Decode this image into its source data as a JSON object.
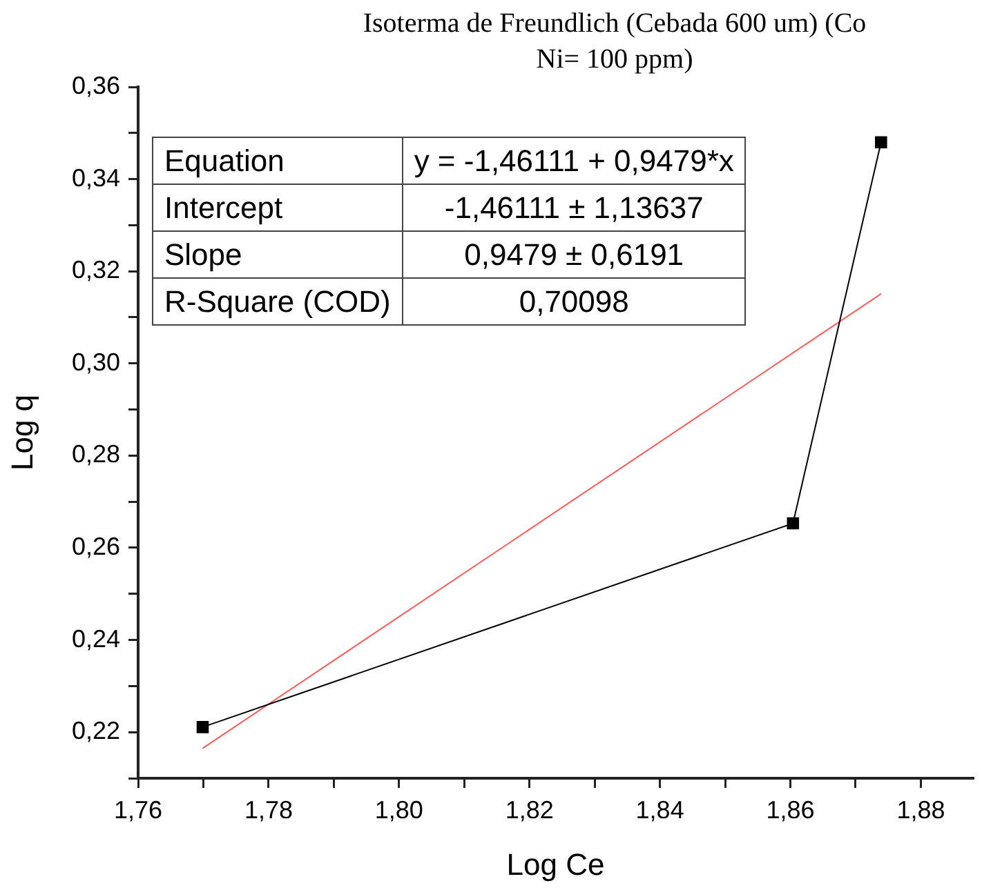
{
  "chart_data": {
    "type": "line",
    "title": "Isoterma de Freundlich (Cebada 600 um) (Co Ni= 100 ppm)",
    "xlabel": "Log Ce",
    "ylabel": "Log q",
    "xlim": [
      1.76,
      1.888
    ],
    "ylim": [
      0.21,
      0.36
    ],
    "xticks": [
      {
        "value": 1.76,
        "label": "1,76"
      },
      {
        "value": 1.77,
        "label": null
      },
      {
        "value": 1.78,
        "label": "1,78"
      },
      {
        "value": 1.79,
        "label": null
      },
      {
        "value": 1.8,
        "label": "1,80"
      },
      {
        "value": 1.81,
        "label": null
      },
      {
        "value": 1.82,
        "label": "1,82"
      },
      {
        "value": 1.83,
        "label": null
      },
      {
        "value": 1.84,
        "label": "1,84"
      },
      {
        "value": 1.85,
        "label": null
      },
      {
        "value": 1.86,
        "label": "1,86"
      },
      {
        "value": 1.87,
        "label": null
      },
      {
        "value": 1.88,
        "label": "1,88"
      }
    ],
    "yticks": [
      {
        "value": 0.21,
        "label": null
      },
      {
        "value": 0.22,
        "label": "0,22"
      },
      {
        "value": 0.23,
        "label": null
      },
      {
        "value": 0.24,
        "label": "0,24"
      },
      {
        "value": 0.25,
        "label": null
      },
      {
        "value": 0.26,
        "label": "0,26"
      },
      {
        "value": 0.27,
        "label": null
      },
      {
        "value": 0.28,
        "label": "0,28"
      },
      {
        "value": 0.29,
        "label": null
      },
      {
        "value": 0.3,
        "label": "0,30"
      },
      {
        "value": 0.31,
        "label": null
      },
      {
        "value": 0.32,
        "label": "0,32"
      },
      {
        "value": 0.33,
        "label": null
      },
      {
        "value": 0.34,
        "label": "0,34"
      },
      {
        "value": 0.35,
        "label": null
      },
      {
        "value": 0.36,
        "label": "0,36"
      }
    ],
    "grid": false,
    "legend": false,
    "marker": "square",
    "line_style": "solid",
    "series": [
      {
        "color": "#000000",
        "x": [
          1.7699,
          1.8604,
          1.8739
        ],
        "values": [
          0.2211,
          0.2653,
          0.348
        ]
      },
      {
        "type": "line",
        "color": "#ff5a5a",
        "marker": "none",
        "x": [
          1.7699,
          1.8739
        ],
        "values": [
          0.2165,
          0.3151
        ]
      }
    ],
    "annotations": [
      "Equation",
      "y = -1,46111 + 0,9479*x",
      "Intercept",
      "-1,46111 ± 1,13637",
      "Slope",
      "0,9479 ± 0,6191",
      "R-Square (COD)",
      "0,70098"
    ]
  }
}
